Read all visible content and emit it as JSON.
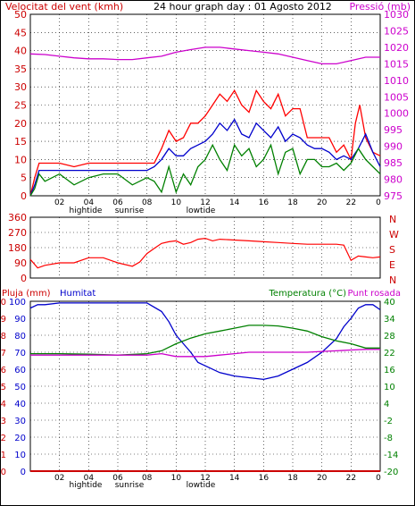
{
  "header": {
    "left": "Velocitat del vent (kmh)",
    "center": "24 hour graph day : 01 Agosto 2012",
    "right": "Pressió (mb)"
  },
  "colors": {
    "red": "#ff0000",
    "blue": "#0000cc",
    "green": "#008000",
    "magenta": "#cc00cc",
    "darkred": "#cc0000"
  },
  "x_axis": {
    "ticks": [
      "02",
      "04",
      "06",
      "08",
      "10",
      "12",
      "14",
      "16",
      "18",
      "20",
      "22",
      "0"
    ],
    "sub_labels": [
      "hightide",
      "sunrise",
      "lowtide"
    ]
  },
  "panel3": {
    "label_pluja": "Pluja (mm)",
    "label_humitat": "Humitat",
    "label_temp": "Temperatura (°C)",
    "label_dew": "Punt rosada"
  },
  "chart_data": [
    {
      "type": "line",
      "name": "wind-pressure",
      "xlim": [
        0,
        24
      ],
      "y_left": {
        "label": "Velocitat del vent (kmh)",
        "ylim": [
          0,
          50
        ],
        "ticks": [
          0,
          5,
          10,
          15,
          20,
          25,
          30,
          35,
          40,
          45,
          50
        ]
      },
      "y_right": {
        "label": "Pressió (mb)",
        "ylim": [
          975,
          1030
        ],
        "ticks": [
          975,
          980,
          985,
          990,
          995,
          1000,
          1005,
          1010,
          1015,
          1020,
          1025,
          1030
        ]
      },
      "series": [
        {
          "color": "red",
          "axis": "left",
          "x": [
            0,
            0.3,
            0.6,
            1,
            2,
            3,
            4,
            5,
            6,
            7,
            8,
            8.5,
            9,
            9.5,
            10,
            10.5,
            11,
            11.5,
            12,
            12.5,
            13,
            13.5,
            14,
            14.5,
            15,
            15.5,
            16,
            16.5,
            17,
            17.5,
            18,
            18.5,
            19,
            19.5,
            20,
            20.5,
            21,
            21.5,
            22,
            22.3,
            22.6,
            23,
            23.5,
            24
          ],
          "y": [
            0,
            5,
            9,
            9,
            9,
            8,
            9,
            9,
            9,
            9,
            9,
            9,
            13,
            18,
            15,
            16,
            20,
            20,
            22,
            25,
            28,
            26,
            29,
            25,
            23,
            29,
            26,
            24,
            28,
            22,
            24,
            24,
            16,
            16,
            16,
            16,
            12,
            14,
            10,
            20,
            25,
            16,
            12,
            11
          ]
        },
        {
          "color": "blue",
          "axis": "left",
          "x": [
            0,
            0.3,
            0.6,
            1,
            2,
            3,
            4,
            5,
            6,
            7,
            8,
            8.5,
            9,
            9.5,
            10,
            10.5,
            11,
            11.5,
            12,
            12.5,
            13,
            13.5,
            14,
            14.5,
            15,
            15.5,
            16,
            16.5,
            17,
            17.5,
            18,
            18.5,
            19,
            19.5,
            20,
            20.5,
            21,
            21.5,
            22,
            22.5,
            23,
            23.5,
            24
          ],
          "y": [
            0,
            3,
            7,
            7,
            7,
            7,
            7,
            7,
            7,
            7,
            7,
            8,
            10,
            13,
            11,
            11,
            13,
            14,
            15,
            17,
            20,
            18,
            21,
            17,
            16,
            20,
            18,
            16,
            19,
            15,
            17,
            16,
            14,
            13,
            13,
            12,
            10,
            11,
            10,
            13,
            17,
            12,
            8
          ]
        },
        {
          "color": "green",
          "axis": "left",
          "x": [
            0,
            0.3,
            0.6,
            1,
            2,
            3,
            4,
            5,
            6,
            7,
            8,
            8.5,
            9,
            9.5,
            10,
            10.5,
            11,
            11.5,
            12,
            12.5,
            13,
            13.5,
            14,
            14.5,
            15,
            15.5,
            16,
            16.5,
            17,
            17.5,
            18,
            18.5,
            19,
            19.5,
            20,
            20.5,
            21,
            21.5,
            22,
            22.5,
            23,
            23.5,
            24
          ],
          "y": [
            0,
            2,
            6,
            4,
            6,
            3,
            5,
            6,
            6,
            3,
            5,
            4,
            1,
            8,
            1,
            6,
            3,
            8,
            10,
            14,
            10,
            7,
            14,
            11,
            13,
            8,
            10,
            14,
            6,
            12,
            13,
            6,
            10,
            10,
            8,
            8,
            9,
            7,
            9,
            13,
            10,
            8,
            6
          ]
        },
        {
          "color": "magenta",
          "axis": "right",
          "x": [
            0,
            1,
            2,
            3,
            4,
            5,
            6,
            7,
            8,
            9,
            10,
            11,
            12,
            13,
            14,
            15,
            16,
            17,
            18,
            19,
            20,
            21,
            22,
            23,
            24
          ],
          "y": [
            1018,
            1017.8,
            1017.3,
            1016.8,
            1016.5,
            1016.5,
            1016.3,
            1016.3,
            1016.8,
            1017.3,
            1018.5,
            1019.3,
            1020,
            1020,
            1019.5,
            1019,
            1018.5,
            1018,
            1017,
            1016,
            1015,
            1015,
            1016,
            1017,
            1017
          ]
        }
      ]
    },
    {
      "type": "line",
      "name": "wind-direction",
      "xlim": [
        0,
        24
      ],
      "y_left": {
        "ylim": [
          0,
          360
        ],
        "ticks": [
          0,
          90,
          180,
          270,
          360
        ]
      },
      "y_right": {
        "labels": [
          "N",
          "W",
          "S",
          "E",
          "N"
        ]
      },
      "series": [
        {
          "color": "red",
          "x": [
            0,
            0.5,
            1,
            2,
            3,
            4,
            5,
            6,
            7,
            7.5,
            8,
            8.5,
            9,
            9.5,
            10,
            10.5,
            11,
            11.5,
            12,
            12.5,
            13,
            14,
            15,
            16,
            17,
            18,
            19,
            20,
            21,
            21.5,
            22,
            22.5,
            23,
            23.5,
            24
          ],
          "y": [
            110,
            60,
            75,
            90,
            90,
            120,
            120,
            90,
            70,
            95,
            145,
            175,
            205,
            215,
            220,
            200,
            210,
            230,
            235,
            220,
            230,
            225,
            220,
            215,
            210,
            205,
            200,
            200,
            200,
            195,
            105,
            130,
            125,
            120,
            125
          ]
        }
      ]
    },
    {
      "type": "line",
      "name": "rain-humidity-temperature",
      "xlim": [
        0,
        24
      ],
      "y_left": {
        "label": "Pluja (mm)",
        "ticks": [
          0,
          1,
          2,
          3,
          4,
          5,
          6,
          7,
          8,
          9,
          10
        ]
      },
      "y_left2": {
        "label": "Humitat",
        "ticks": [
          0,
          10,
          20,
          30,
          40,
          50,
          60,
          70,
          80,
          90,
          100
        ]
      },
      "y_right": {
        "label": "Temperatura (°C)",
        "ylim": [
          -20,
          40
        ],
        "ticks": [
          -20,
          -14,
          -8,
          -2,
          4,
          10,
          16,
          22,
          28,
          34,
          40
        ]
      },
      "series": [
        {
          "name": "Humitat",
          "color": "blue",
          "axis": "humidity",
          "x": [
            0,
            0.5,
            1,
            2,
            3,
            4,
            5,
            6,
            7,
            8,
            9,
            9.5,
            10,
            10.5,
            11,
            11.5,
            12,
            13,
            14,
            15,
            16,
            17,
            18,
            19,
            20,
            21,
            21.5,
            22,
            22.5,
            23,
            23.5,
            24
          ],
          "y": [
            96,
            98,
            98,
            99,
            99,
            99,
            99,
            99,
            99,
            99,
            94,
            88,
            80,
            75,
            70,
            64,
            62,
            58,
            56,
            55,
            54,
            56,
            60,
            64,
            70,
            78,
            85,
            90,
            96,
            98,
            98,
            95
          ]
        },
        {
          "name": "Temperatura",
          "color": "green",
          "axis": "temp",
          "x": [
            0,
            2,
            4,
            6,
            8,
            9,
            10,
            11,
            12,
            13,
            14,
            15,
            16,
            17,
            18,
            19,
            20,
            21,
            22,
            23,
            24
          ],
          "y": [
            21.5,
            21.5,
            21.3,
            21,
            21.5,
            22.5,
            25,
            27,
            28.5,
            29.5,
            30.5,
            31.5,
            31.5,
            31.3,
            30.5,
            29.5,
            27.5,
            26,
            25,
            23.5,
            23.5
          ]
        },
        {
          "name": "Punt rosada",
          "color": "magenta",
          "axis": "temp",
          "x": [
            0,
            2,
            4,
            6,
            8,
            9,
            10,
            11,
            12,
            13,
            14,
            15,
            16,
            17,
            18,
            19,
            20,
            21,
            22,
            23,
            24
          ],
          "y": [
            21,
            21,
            21,
            21,
            21,
            21.5,
            20.5,
            20.5,
            20.5,
            21,
            21.5,
            22,
            22,
            22,
            22,
            22,
            22.3,
            22.5,
            22.8,
            23,
            23
          ]
        },
        {
          "name": "Pluja",
          "color": "darkred",
          "axis": "rain",
          "x": [
            0,
            24
          ],
          "y": [
            0,
            0
          ]
        }
      ]
    }
  ]
}
